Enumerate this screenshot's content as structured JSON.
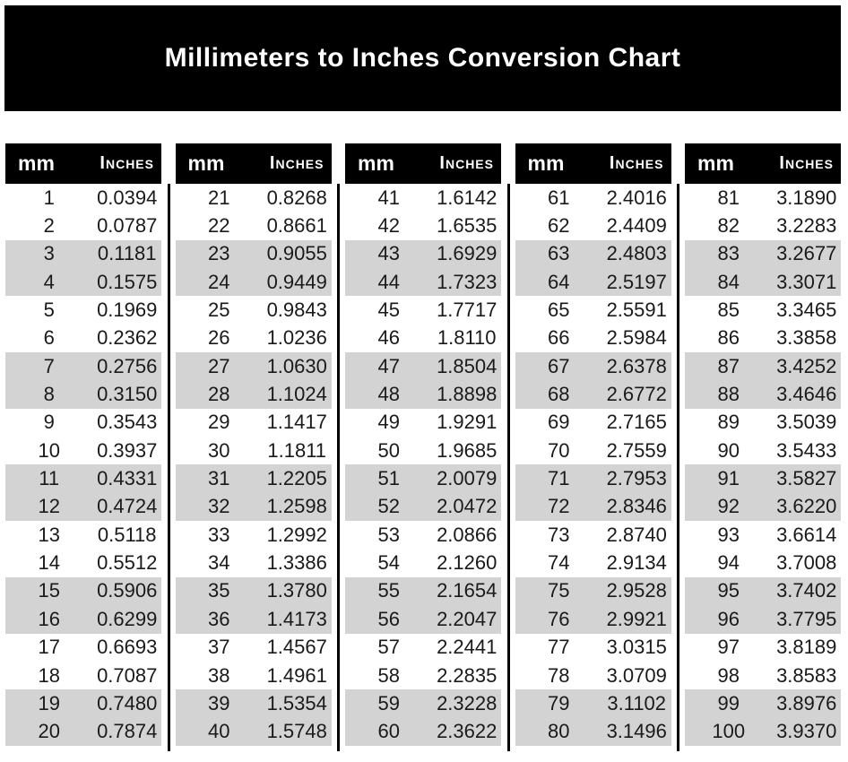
{
  "banner": {
    "title": "Millimeters to Inches Conversion Chart",
    "bg": "#000000",
    "text_color": "#ffffff"
  },
  "table": {
    "header_bg": "#000000",
    "header_text_color": "#ffffff",
    "stripe_color": "#d3d3d3"
  },
  "chart_data": {
    "type": "table",
    "title": "Millimeters to Inches Conversion Chart",
    "columns": [
      "mm",
      "Inches"
    ],
    "stripe_pattern": "rows 3-4, 7-8, 11-12, 15-16, 19-20 of each group shaded",
    "column_groups": [
      {
        "rows": [
          [
            "1",
            "0.0394"
          ],
          [
            "2",
            "0.0787"
          ],
          [
            "3",
            "0.1181"
          ],
          [
            "4",
            "0.1575"
          ],
          [
            "5",
            "0.1969"
          ],
          [
            "6",
            "0.2362"
          ],
          [
            "7",
            "0.2756"
          ],
          [
            "8",
            "0.3150"
          ],
          [
            "9",
            "0.3543"
          ],
          [
            "10",
            "0.3937"
          ],
          [
            "11",
            "0.4331"
          ],
          [
            "12",
            "0.4724"
          ],
          [
            "13",
            "0.5118"
          ],
          [
            "14",
            "0.5512"
          ],
          [
            "15",
            "0.5906"
          ],
          [
            "16",
            "0.6299"
          ],
          [
            "17",
            "0.6693"
          ],
          [
            "18",
            "0.7087"
          ],
          [
            "19",
            "0.7480"
          ],
          [
            "20",
            "0.7874"
          ]
        ]
      },
      {
        "rows": [
          [
            "21",
            "0.8268"
          ],
          [
            "22",
            "0.8661"
          ],
          [
            "23",
            "0.9055"
          ],
          [
            "24",
            "0.9449"
          ],
          [
            "25",
            "0.9843"
          ],
          [
            "26",
            "1.0236"
          ],
          [
            "27",
            "1.0630"
          ],
          [
            "28",
            "1.1024"
          ],
          [
            "29",
            "1.1417"
          ],
          [
            "30",
            "1.1811"
          ],
          [
            "31",
            "1.2205"
          ],
          [
            "32",
            "1.2598"
          ],
          [
            "33",
            "1.2992"
          ],
          [
            "34",
            "1.3386"
          ],
          [
            "35",
            "1.3780"
          ],
          [
            "36",
            "1.4173"
          ],
          [
            "37",
            "1.4567"
          ],
          [
            "38",
            "1.4961"
          ],
          [
            "39",
            "1.5354"
          ],
          [
            "40",
            "1.5748"
          ]
        ]
      },
      {
        "rows": [
          [
            "41",
            "1.6142"
          ],
          [
            "42",
            "1.6535"
          ],
          [
            "43",
            "1.6929"
          ],
          [
            "44",
            "1.7323"
          ],
          [
            "45",
            "1.7717"
          ],
          [
            "46",
            "1.8110"
          ],
          [
            "47",
            "1.8504"
          ],
          [
            "48",
            "1.8898"
          ],
          [
            "49",
            "1.9291"
          ],
          [
            "50",
            "1.9685"
          ],
          [
            "51",
            "2.0079"
          ],
          [
            "52",
            "2.0472"
          ],
          [
            "53",
            "2.0866"
          ],
          [
            "54",
            "2.1260"
          ],
          [
            "55",
            "2.1654"
          ],
          [
            "56",
            "2.2047"
          ],
          [
            "57",
            "2.2441"
          ],
          [
            "58",
            "2.2835"
          ],
          [
            "59",
            "2.3228"
          ],
          [
            "60",
            "2.3622"
          ]
        ]
      },
      {
        "rows": [
          [
            "61",
            "2.4016"
          ],
          [
            "62",
            "2.4409"
          ],
          [
            "63",
            "2.4803"
          ],
          [
            "64",
            "2.5197"
          ],
          [
            "65",
            "2.5591"
          ],
          [
            "66",
            "2.5984"
          ],
          [
            "67",
            "2.6378"
          ],
          [
            "68",
            "2.6772"
          ],
          [
            "69",
            "2.7165"
          ],
          [
            "70",
            "2.7559"
          ],
          [
            "71",
            "2.7953"
          ],
          [
            "72",
            "2.8346"
          ],
          [
            "73",
            "2.8740"
          ],
          [
            "74",
            "2.9134"
          ],
          [
            "75",
            "2.9528"
          ],
          [
            "76",
            "2.9921"
          ],
          [
            "77",
            "3.0315"
          ],
          [
            "78",
            "3.0709"
          ],
          [
            "79",
            "3.1102"
          ],
          [
            "80",
            "3.1496"
          ]
        ]
      },
      {
        "rows": [
          [
            "81",
            "3.1890"
          ],
          [
            "82",
            "3.2283"
          ],
          [
            "83",
            "3.2677"
          ],
          [
            "84",
            "3.3071"
          ],
          [
            "85",
            "3.3465"
          ],
          [
            "86",
            "3.3858"
          ],
          [
            "87",
            "3.4252"
          ],
          [
            "88",
            "3.4646"
          ],
          [
            "89",
            "3.5039"
          ],
          [
            "90",
            "3.5433"
          ],
          [
            "91",
            "3.5827"
          ],
          [
            "92",
            "3.6220"
          ],
          [
            "93",
            "3.6614"
          ],
          [
            "94",
            "3.7008"
          ],
          [
            "95",
            "3.7402"
          ],
          [
            "96",
            "3.7795"
          ],
          [
            "97",
            "3.8189"
          ],
          [
            "98",
            "3.8583"
          ],
          [
            "99",
            "3.8976"
          ],
          [
            "100",
            "3.9370"
          ]
        ]
      }
    ]
  }
}
